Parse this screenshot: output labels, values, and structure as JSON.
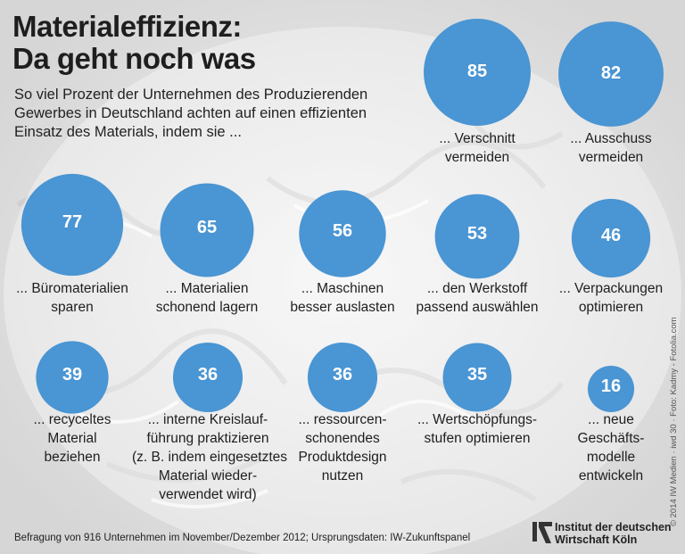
{
  "title_lines": [
    "Materialeffizienz:",
    "Da geht noch was"
  ],
  "subtitle_lines": [
    "So viel Prozent der Unternehmen des Produzierenden",
    "Gewerbes in Deutschland achten auf einen effizienten",
    "Einsatz des Materials, indem sie ..."
  ],
  "footer": "Befragung von 916 Unternehmen im November/Dezember 2012; Ursprungsdaten: IW-Zukunftspanel",
  "copyright": "© 2014 IW Medien · iwd 30 · Foto: Kadmy - Fotolia.com",
  "logo_lines": [
    "Institut der deutschen",
    "Wirtschaft Köln"
  ],
  "colors": {
    "bubble": "#4a95d3",
    "bubble_text": "#ffffff"
  },
  "chart_data": {
    "type": "bubble",
    "unit": "%",
    "items": [
      {
        "value": 85,
        "label_lines": [
          "... Verschnitt",
          "vermeiden"
        ]
      },
      {
        "value": 82,
        "label_lines": [
          "... Ausschuss",
          "vermeiden"
        ]
      },
      {
        "value": 77,
        "label_lines": [
          "... Büromaterialien",
          "sparen"
        ]
      },
      {
        "value": 65,
        "label_lines": [
          "... Materialien",
          "schonend lagern"
        ]
      },
      {
        "value": 56,
        "label_lines": [
          "... Maschinen",
          "besser auslasten"
        ]
      },
      {
        "value": 53,
        "label_lines": [
          "... den Werkstoff",
          "passend auswählen"
        ]
      },
      {
        "value": 46,
        "label_lines": [
          "... Verpackungen",
          "optimieren"
        ]
      },
      {
        "value": 39,
        "label_lines": [
          "... recyceltes",
          "Material",
          "beziehen"
        ]
      },
      {
        "value": 36,
        "label_lines": [
          "... interne Kreislauf-",
          "führung praktizieren",
          "(z. B. indem eingesetztes",
          "Material wieder-",
          "verwendet wird)"
        ]
      },
      {
        "value": 36,
        "label_lines": [
          "... ressourcen-",
          "schonendes",
          "Produktdesign",
          "nutzen"
        ]
      },
      {
        "value": 35,
        "label_lines": [
          "... Wertschöpfungs-",
          "stufen optimieren"
        ]
      },
      {
        "value": 16,
        "label_lines": [
          "... neue",
          "Geschäfts-",
          "modelle",
          "entwickeln"
        ]
      }
    ]
  }
}
